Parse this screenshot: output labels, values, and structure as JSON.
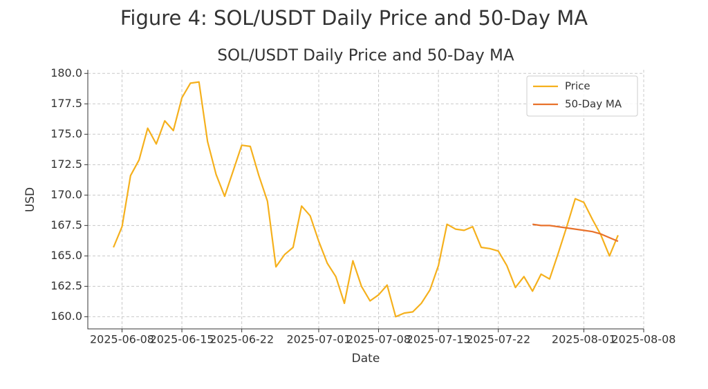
{
  "chart_data": {
    "type": "line",
    "suptitle": "Figure 4: SOL/USDT Daily Price and 50-Day MA",
    "title": "SOL/USDT Daily Price and 50-Day MA",
    "xlabel": "Date",
    "ylabel": "USD",
    "x": [
      "2025-06-07",
      "2025-06-08",
      "2025-06-09",
      "2025-06-10",
      "2025-06-11",
      "2025-06-12",
      "2025-06-13",
      "2025-06-14",
      "2025-06-15",
      "2025-06-16",
      "2025-06-17",
      "2025-06-18",
      "2025-06-19",
      "2025-06-20",
      "2025-06-21",
      "2025-06-22",
      "2025-06-23",
      "2025-06-24",
      "2025-06-25",
      "2025-06-26",
      "2025-06-27",
      "2025-06-28",
      "2025-06-29",
      "2025-06-30",
      "2025-07-01",
      "2025-07-02",
      "2025-07-03",
      "2025-07-04",
      "2025-07-05",
      "2025-07-06",
      "2025-07-07",
      "2025-07-08",
      "2025-07-09",
      "2025-07-10",
      "2025-07-11",
      "2025-07-12",
      "2025-07-13",
      "2025-07-14",
      "2025-07-15",
      "2025-07-16",
      "2025-07-17",
      "2025-07-18",
      "2025-07-19",
      "2025-07-20",
      "2025-07-21",
      "2025-07-22",
      "2025-07-23",
      "2025-07-24",
      "2025-07-25",
      "2025-07-26",
      "2025-07-27",
      "2025-07-28",
      "2025-07-29",
      "2025-07-30",
      "2025-07-31",
      "2025-08-01",
      "2025-08-02",
      "2025-08-03",
      "2025-08-04",
      "2025-08-05"
    ],
    "series": [
      {
        "name": "Price",
        "color": "#f5b01c",
        "values": [
          165.7,
          167.4,
          171.6,
          172.9,
          175.5,
          174.2,
          176.1,
          175.3,
          178.0,
          179.2,
          179.3,
          174.4,
          171.7,
          169.9,
          172.0,
          174.1,
          174.0,
          171.6,
          169.5,
          164.1,
          165.1,
          165.7,
          169.1,
          168.3,
          166.2,
          164.4,
          163.3,
          161.1,
          164.6,
          162.5,
          161.3,
          161.8,
          162.6,
          160.0,
          160.3,
          160.4,
          161.1,
          162.2,
          164.2,
          167.6,
          167.2,
          167.1,
          167.4,
          165.7,
          165.6,
          165.4,
          164.2,
          162.4,
          163.3,
          162.1,
          163.5,
          163.1,
          165.2,
          167.4,
          169.7,
          169.4,
          168.0,
          166.7,
          165.0,
          166.7
        ]
      },
      {
        "name": "50-Day MA",
        "color": "#e8712a",
        "values": [
          null,
          null,
          null,
          null,
          null,
          null,
          null,
          null,
          null,
          null,
          null,
          null,
          null,
          null,
          null,
          null,
          null,
          null,
          null,
          null,
          null,
          null,
          null,
          null,
          null,
          null,
          null,
          null,
          null,
          null,
          null,
          null,
          null,
          null,
          null,
          null,
          null,
          null,
          null,
          null,
          null,
          null,
          null,
          null,
          null,
          null,
          null,
          null,
          null,
          167.6,
          167.5,
          167.5,
          167.4,
          167.3,
          167.2,
          167.1,
          167.0,
          166.8,
          166.5,
          166.2
        ]
      }
    ],
    "xlim": [
      "2025-06-04",
      "2025-08-08"
    ],
    "xticks": [
      "2025-06-08",
      "2025-06-15",
      "2025-06-22",
      "2025-07-01",
      "2025-07-08",
      "2025-07-15",
      "2025-07-22",
      "2025-08-01",
      "2025-08-08"
    ],
    "ylim": [
      159.0,
      180.3
    ],
    "yticks": [
      {
        "value": 160,
        "label": "160.0"
      },
      {
        "value": 162.5,
        "label": "162.5"
      },
      {
        "value": 165,
        "label": "165.0"
      },
      {
        "value": 167.5,
        "label": "167.5"
      },
      {
        "value": 170,
        "label": "170.0"
      },
      {
        "value": 172.5,
        "label": "172.5"
      },
      {
        "value": 175,
        "label": "175.0"
      },
      {
        "value": 177.5,
        "label": "177.5"
      },
      {
        "value": 180,
        "label": "180.0"
      }
    ],
    "grid": true,
    "legend": "upper right"
  }
}
